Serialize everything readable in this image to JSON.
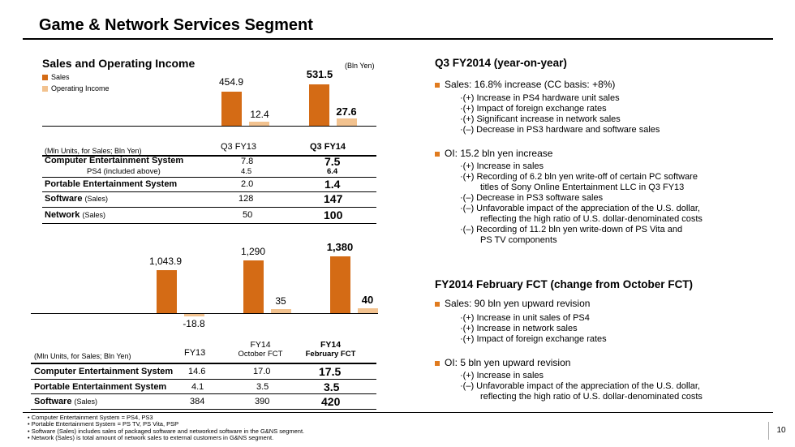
{
  "title": "Game & Network Services Segment",
  "colors": {
    "sales": "#d46b15",
    "oi": "#f2c28f",
    "bullet": "#e07b1f"
  },
  "left": {
    "heading": "Sales and Operating Income",
    "unit": "(Bln Yen)",
    "legend": {
      "sales": "Sales",
      "oi": "Operating Income"
    },
    "chart1": {
      "sales": [
        "454.9",
        "531.5"
      ],
      "oi": [
        "12.4",
        "27.6"
      ]
    },
    "table1": {
      "header_note": "(Mln Units, for Sales; Bln Yen)",
      "cols": [
        "Q3 FY13",
        "Q3 FY14"
      ],
      "rows": [
        {
          "label": "Computer Entertainment System",
          "v1": "7.8",
          "v2": "7.5"
        },
        {
          "label": "PS4 (included above)",
          "v1": "4.5",
          "v2": "6.4"
        },
        {
          "label": "Portable Entertainment System",
          "v1": "2.0",
          "v2": "1.4"
        },
        {
          "label": "Software",
          "suffix": "(Sales)",
          "v1": "128",
          "v2": "147"
        },
        {
          "label": "Network",
          "suffix": "(Sales)",
          "v1": "50",
          "v2": "100"
        }
      ]
    },
    "chart2": {
      "sales": [
        "1,043.9",
        "1,290",
        "1,380"
      ],
      "oi": [
        "-18.8",
        "35",
        "40"
      ]
    },
    "table2": {
      "header_note": "(Mln Units, for Sales; Bln Yen)",
      "col1": "FY13",
      "col2_top": "FY14",
      "col2_bot": "October FCT",
      "col3_top": "FY14",
      "col3_bot": "February FCT",
      "rows": [
        {
          "label": "Computer Entertainment System",
          "v1": "14.6",
          "v2": "17.0",
          "v3": "17.5"
        },
        {
          "label": "Portable Entertainment System",
          "v1": "4.1",
          "v2": "3.5",
          "v3": "3.5"
        },
        {
          "label": "Software",
          "suffix": "(Sales)",
          "v1": "384",
          "v2": "390",
          "v3": "420"
        }
      ]
    }
  },
  "chart_data": [
    {
      "type": "bar",
      "title": "Sales and Operating Income (Q3)",
      "categories": [
        "Q3 FY13",
        "Q3 FY14"
      ],
      "series": [
        {
          "name": "Sales",
          "values": [
            454.9,
            531.5
          ]
        },
        {
          "name": "Operating Income",
          "values": [
            12.4,
            27.6
          ]
        }
      ],
      "ylabel": "Bln Yen"
    },
    {
      "type": "bar",
      "title": "Sales and Operating Income (Full Year)",
      "categories": [
        "FY13",
        "FY14 October FCT",
        "FY14 February FCT"
      ],
      "series": [
        {
          "name": "Sales",
          "values": [
            1043.9,
            1290,
            1380
          ]
        },
        {
          "name": "Operating Income",
          "values": [
            -18.8,
            35,
            40
          ]
        }
      ],
      "ylabel": "Bln Yen"
    }
  ],
  "right": {
    "q3": {
      "heading": "Q3 FY2014 (year-on-year)",
      "sales_line": "Sales: 16.8% increase (CC basis:  +8%)",
      "sales_items": [
        "·(+) Increase in PS4 hardware unit sales",
        "·(+) Impact of foreign exchange rates",
        "·(+) Significant increase in network sales",
        "·(–) Decrease in PS3 hardware and software sales"
      ],
      "oi_line": "OI:  15.2 bln yen increase",
      "oi_items": [
        "·(+) Increase in sales",
        "·(+) Recording of 6.2 bln yen write-off of certain PC software",
        "titles of Sony Online Entertainment LLC in Q3 FY13",
        "·(–) Decrease in PS3 software sales",
        "·(–) Unfavorable impact of the appreciation of the U.S. dollar,",
        "reflecting the high ratio of U.S. dollar-denominated costs",
        "·(–) Recording of 11.2 bln yen write-down of PS Vita and",
        "PS TV components"
      ]
    },
    "fy": {
      "heading": "FY2014 February FCT (change from October FCT)",
      "sales_line": "Sales: 90 bln yen upward revision",
      "sales_items": [
        "·(+) Increase in unit sales of PS4",
        "·(+) Increase in network sales",
        "·(+) Impact of foreign exchange rates"
      ],
      "oi_line": "OI: 5 bln yen upward revision",
      "oi_items": [
        "·(+) Increase in sales",
        "·(–) Unfavorable impact of the appreciation of the U.S. dollar,",
        "reflecting the high ratio of U.S. dollar-denominated costs"
      ]
    }
  },
  "footnotes": [
    "• Computer Entertainment System = PS4, PS3",
    "• Portable Entertainment System = PS TV, PS Vita, PSP",
    "• Software (Sales) includes sales of packaged software and networked software in the G&NS segment.",
    "• Network (Sales) is total amount of network sales to external customers in G&NS segment."
  ],
  "page_number": "10"
}
